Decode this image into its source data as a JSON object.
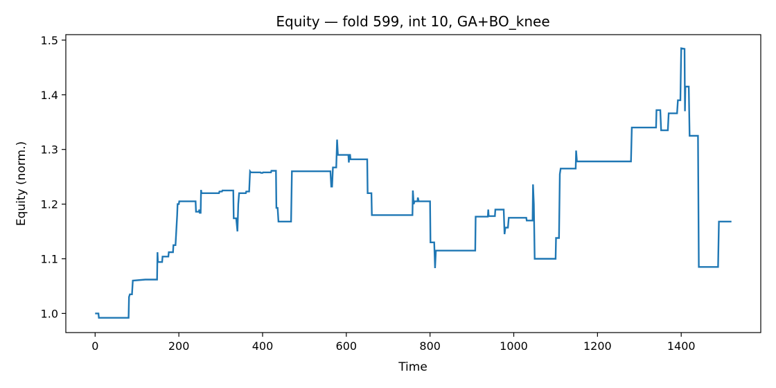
{
  "chart_data": {
    "type": "line",
    "title": "Equity — fold 599, int 10, GA+BO_knee",
    "xlabel": "Time",
    "ylabel": "Equity (norm.)",
    "xlim": [
      -70,
      1590
    ],
    "ylim": [
      0.965,
      1.51
    ],
    "xticks": [
      0,
      200,
      400,
      600,
      800,
      1000,
      1200,
      1400
    ],
    "yticks": [
      1.0,
      1.1,
      1.2,
      1.3,
      1.4,
      1.5
    ],
    "ytick_labels": [
      "1.0",
      "1.1",
      "1.2",
      "1.3",
      "1.4",
      "1.5"
    ],
    "grid": false,
    "line_color": "#1f77b4",
    "series": [
      {
        "name": "",
        "points": [
          [
            0,
            1.0
          ],
          [
            8,
            1.0
          ],
          [
            9,
            0.992
          ],
          [
            80,
            0.992
          ],
          [
            81,
            1.03
          ],
          [
            83,
            1.035
          ],
          [
            88,
            1.035
          ],
          [
            90,
            1.06
          ],
          [
            120,
            1.062
          ],
          [
            148,
            1.062
          ],
          [
            149,
            1.112
          ],
          [
            150,
            1.094
          ],
          [
            160,
            1.094
          ],
          [
            161,
            1.104
          ],
          [
            175,
            1.104
          ],
          [
            176,
            1.112
          ],
          [
            186,
            1.112
          ],
          [
            187,
            1.125
          ],
          [
            192,
            1.125
          ],
          [
            196,
            1.18
          ],
          [
            197,
            1.2
          ],
          [
            200,
            1.2
          ],
          [
            201,
            1.205
          ],
          [
            240,
            1.205
          ],
          [
            241,
            1.186
          ],
          [
            248,
            1.186
          ],
          [
            249,
            1.19
          ],
          [
            250,
            1.184
          ],
          [
            252,
            1.184
          ],
          [
            253,
            1.226
          ],
          [
            254,
            1.22
          ],
          [
            296,
            1.22
          ],
          [
            297,
            1.223
          ],
          [
            303,
            1.223
          ],
          [
            304,
            1.225
          ],
          [
            330,
            1.225
          ],
          [
            331,
            1.174
          ],
          [
            337,
            1.174
          ],
          [
            340,
            1.15
          ],
          [
            342,
            1.2
          ],
          [
            344,
            1.22
          ],
          [
            360,
            1.22
          ],
          [
            361,
            1.223
          ],
          [
            368,
            1.223
          ],
          [
            370,
            1.26
          ],
          [
            372,
            1.258
          ],
          [
            395,
            1.258
          ],
          [
            396,
            1.257
          ],
          [
            400,
            1.257
          ],
          [
            401,
            1.258
          ],
          [
            420,
            1.258
          ],
          [
            421,
            1.261
          ],
          [
            432,
            1.261
          ],
          [
            433,
            1.193
          ],
          [
            436,
            1.193
          ],
          [
            438,
            1.168
          ],
          [
            468,
            1.168
          ],
          [
            470,
            1.26
          ],
          [
            562,
            1.26
          ],
          [
            564,
            1.232
          ],
          [
            566,
            1.232
          ],
          [
            568,
            1.267
          ],
          [
            576,
            1.267
          ],
          [
            578,
            1.318
          ],
          [
            580,
            1.29
          ],
          [
            605,
            1.29
          ],
          [
            606,
            1.276
          ],
          [
            607,
            1.29
          ],
          [
            609,
            1.29
          ],
          [
            610,
            1.282
          ],
          [
            650,
            1.282
          ],
          [
            651,
            1.22
          ],
          [
            660,
            1.22
          ],
          [
            661,
            1.18
          ],
          [
            758,
            1.18
          ],
          [
            759,
            1.225
          ],
          [
            761,
            1.2
          ],
          [
            763,
            1.205
          ],
          [
            770,
            1.205
          ],
          [
            771,
            1.212
          ],
          [
            773,
            1.205
          ],
          [
            800,
            1.205
          ],
          [
            801,
            1.13
          ],
          [
            810,
            1.13
          ],
          [
            812,
            1.083
          ],
          [
            814,
            1.115
          ],
          [
            908,
            1.115
          ],
          [
            909,
            1.177
          ],
          [
            938,
            1.177
          ],
          [
            939,
            1.19
          ],
          [
            940,
            1.178
          ],
          [
            955,
            1.178
          ],
          [
            956,
            1.19
          ],
          [
            976,
            1.19
          ],
          [
            978,
            1.145
          ],
          [
            980,
            1.157
          ],
          [
            986,
            1.157
          ],
          [
            988,
            1.175
          ],
          [
            1030,
            1.175
          ],
          [
            1031,
            1.17
          ],
          [
            1045,
            1.17
          ],
          [
            1046,
            1.236
          ],
          [
            1048,
            1.2
          ],
          [
            1050,
            1.1
          ],
          [
            1100,
            1.1
          ],
          [
            1101,
            1.138
          ],
          [
            1108,
            1.138
          ],
          [
            1110,
            1.255
          ],
          [
            1112,
            1.265
          ],
          [
            1148,
            1.265
          ],
          [
            1149,
            1.298
          ],
          [
            1151,
            1.278
          ],
          [
            1280,
            1.278
          ],
          [
            1282,
            1.34
          ],
          [
            1340,
            1.34
          ],
          [
            1341,
            1.372
          ],
          [
            1350,
            1.372
          ],
          [
            1352,
            1.335
          ],
          [
            1368,
            1.335
          ],
          [
            1370,
            1.366
          ],
          [
            1390,
            1.366
          ],
          [
            1392,
            1.39
          ],
          [
            1398,
            1.39
          ],
          [
            1400,
            1.485
          ],
          [
            1408,
            1.484
          ],
          [
            1409,
            1.37
          ],
          [
            1410,
            1.415
          ],
          [
            1418,
            1.415
          ],
          [
            1420,
            1.325
          ],
          [
            1440,
            1.325
          ],
          [
            1442,
            1.085
          ],
          [
            1488,
            1.085
          ],
          [
            1490,
            1.168
          ],
          [
            1520,
            1.168
          ]
        ]
      }
    ]
  }
}
